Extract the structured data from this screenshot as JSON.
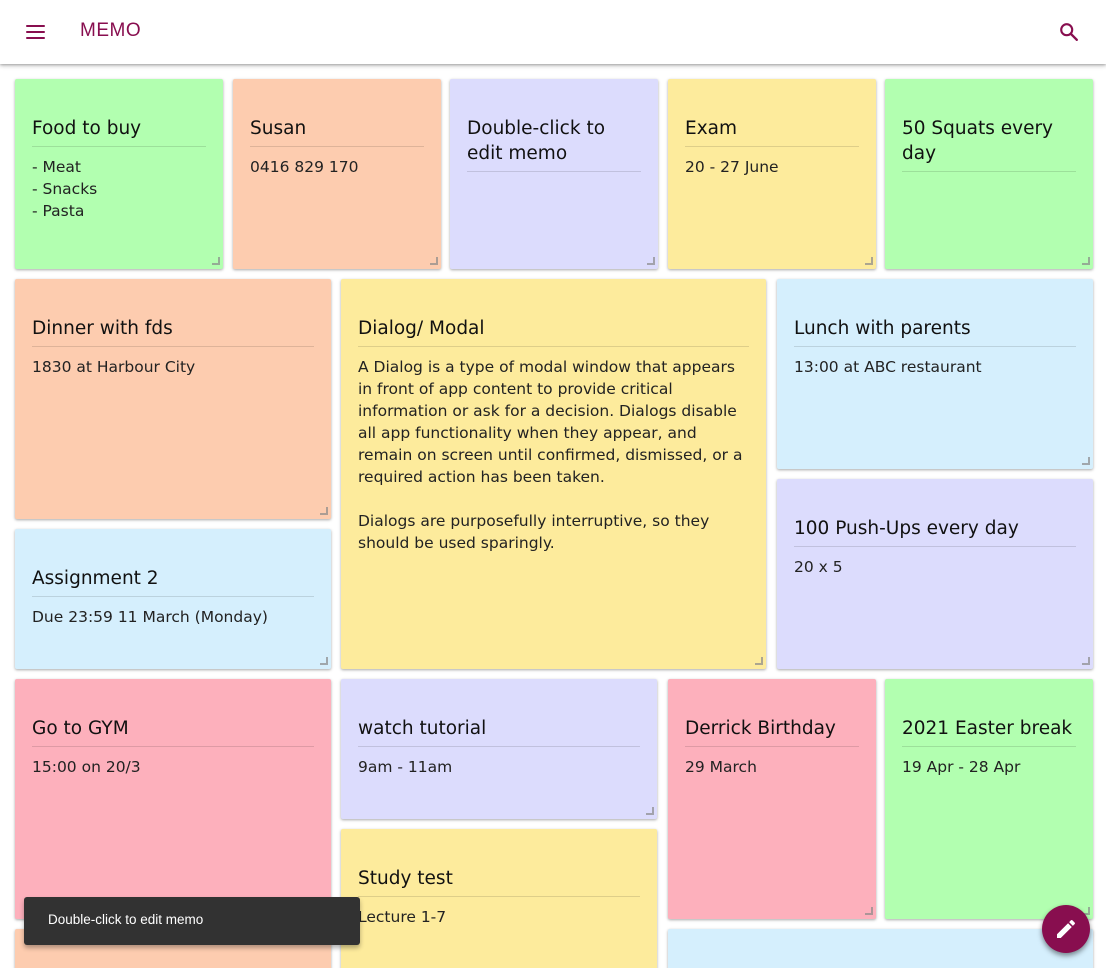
{
  "appbar": {
    "title": "MEMO",
    "menu_icon": "menu-icon",
    "search_icon": "search-icon",
    "accent_color": "#880e4f"
  },
  "memos": [
    {
      "id": "food-to-buy",
      "color": "#b2ffb0",
      "title": "Food to buy",
      "body": "- Meat\n- Snacks\n- Pasta"
    },
    {
      "id": "susan",
      "color": "#fdccaf",
      "title": "Susan",
      "body": "0416 829 170"
    },
    {
      "id": "double-click-hint",
      "color": "#dcdcfd",
      "title": "Double-click to edit memo",
      "body": ""
    },
    {
      "id": "exam",
      "color": "#fdeb9c",
      "title": "Exam",
      "body": "20 - 27 June"
    },
    {
      "id": "squats",
      "color": "#b2ffb0",
      "title": "50 Squats every day",
      "body": ""
    },
    {
      "id": "dinner",
      "color": "#fdccaf",
      "title": "Dinner with fds",
      "body": "1830 at Harbour City"
    },
    {
      "id": "dialog-modal",
      "color": "#fdeb9c",
      "title": "Dialog/ Modal",
      "body": "A Dialog is a type of modal window that appears in front of app content to provide critical information or ask for a decision. Dialogs disable all app functionality when they appear, and remain on screen until confirmed, dismissed, or a required action has been taken.\n\nDialogs are purposefully interruptive, so they should be used sparingly."
    },
    {
      "id": "lunch",
      "color": "#d5effd",
      "title": "Lunch with parents",
      "body": "13:00 at ABC restaurant"
    },
    {
      "id": "assignment",
      "color": "#d5effd",
      "title": "Assignment 2",
      "body": "Due 23:59 11 March (Monday)"
    },
    {
      "id": "pushups",
      "color": "#dcdcfd",
      "title": "100 Push-Ups every day",
      "body": "20 x 5"
    },
    {
      "id": "gym",
      "color": "#fdb0bc",
      "title": "Go to GYM",
      "body": "15:00 on 20/3"
    },
    {
      "id": "tutorial",
      "color": "#dcdcfd",
      "title": "watch tutorial",
      "body": "9am - 11am"
    },
    {
      "id": "derrick",
      "color": "#fdb0bc",
      "title": "Derrick Birthday",
      "body": "29 March"
    },
    {
      "id": "easter",
      "color": "#b2ffb0",
      "title": "2021 Easter break",
      "body": "19 Apr - 28 Apr"
    },
    {
      "id": "study-test",
      "color": "#fdeb9c",
      "title": "Study test",
      "body": "Lecture 1-7"
    },
    {
      "id": "partial-bottom-left",
      "color": "#fdccaf",
      "title": "",
      "body": ""
    },
    {
      "id": "partial-bottom-right",
      "color": "#d5effd",
      "title": "",
      "body": ""
    }
  ],
  "snackbar": {
    "message": "Double-click to edit memo"
  },
  "fab": {
    "icon": "pencil-icon"
  }
}
